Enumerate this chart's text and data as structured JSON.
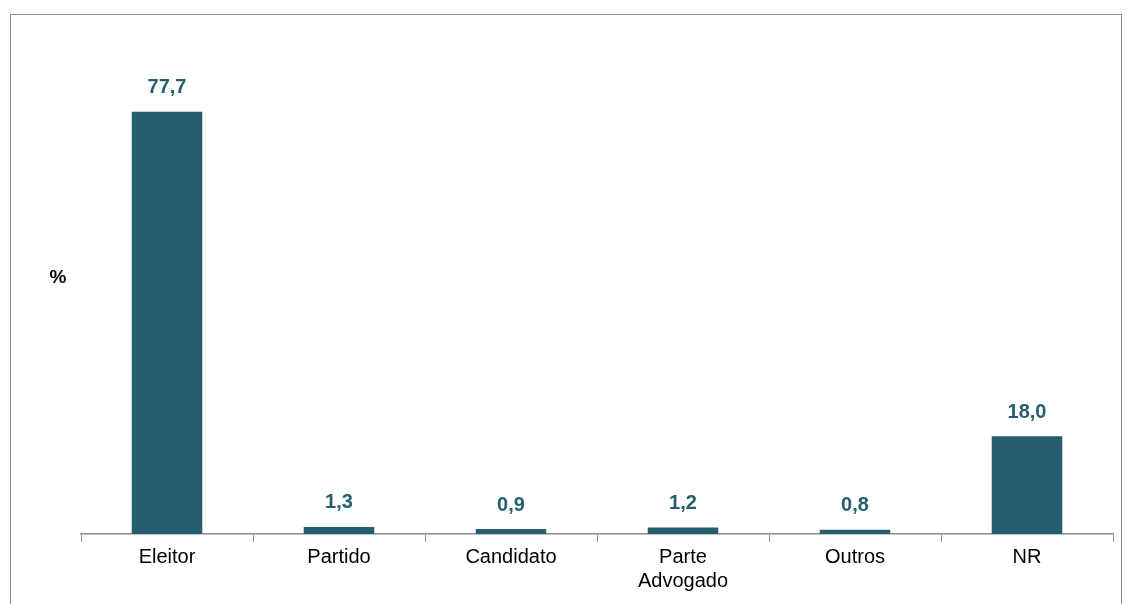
{
  "chart_data": {
    "type": "bar",
    "ylabel": "%",
    "categories": [
      "Eleitor",
      "Partido",
      "Candidato",
      "Parte Advogado",
      "Outros",
      "NR"
    ],
    "values": [
      77.7,
      1.3,
      0.9,
      1.2,
      0.8,
      18.0
    ],
    "value_labels": [
      "77,7",
      "1,3",
      "0,9",
      "1,2",
      "0,8",
      "18,0"
    ],
    "color": "#255e6e",
    "relative": false,
    "grid": false,
    "legend": false
  }
}
